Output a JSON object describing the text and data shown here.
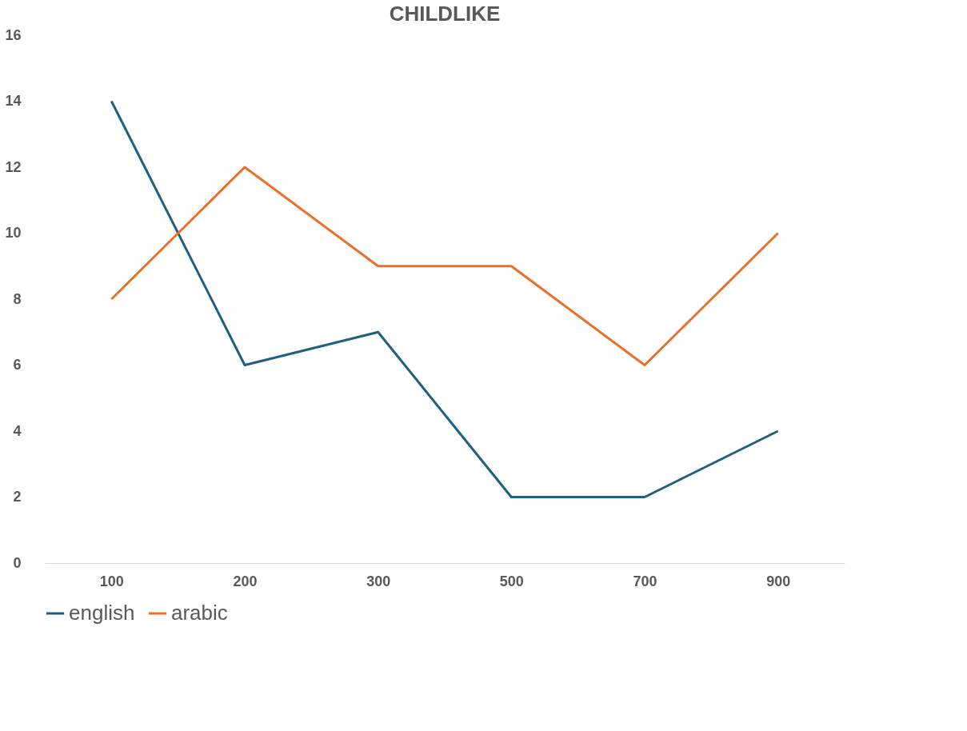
{
  "chart_data": {
    "type": "line",
    "title": "CHILDLIKE",
    "categories": [
      "100",
      "200",
      "300",
      "500",
      "700",
      "900"
    ],
    "series": [
      {
        "name": "english",
        "color": "#1f5f7f",
        "values": [
          14,
          6,
          7,
          2,
          2,
          4
        ]
      },
      {
        "name": "arabic",
        "color": "#e8702a",
        "values": [
          8,
          12,
          9,
          9,
          6,
          10
        ]
      }
    ],
    "ylim": [
      0,
      16
    ],
    "yticks": [
      0,
      2,
      4,
      6,
      8,
      10,
      12,
      14,
      16
    ],
    "grid": false,
    "legend": "bottom",
    "marker": "none",
    "line_style": "solid"
  }
}
